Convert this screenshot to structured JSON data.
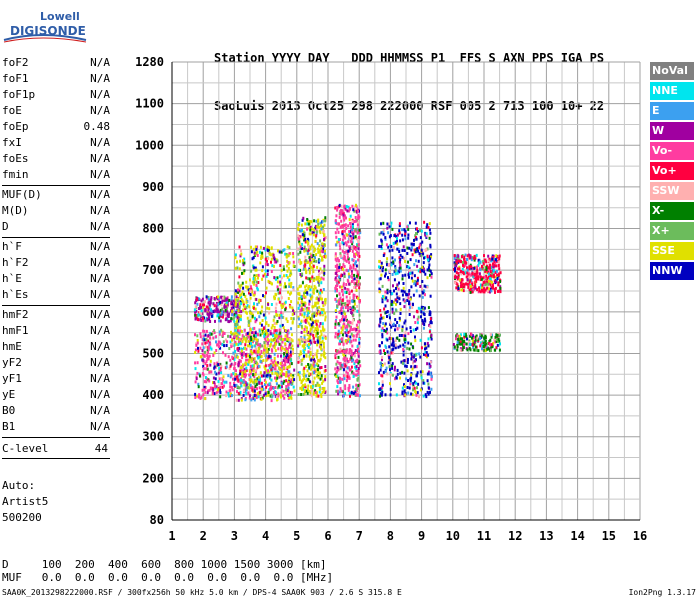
{
  "logo": {
    "line1": "Lowell",
    "line2": "DIGISONDE"
  },
  "header": {
    "line1": "Station YYYY DAY   DDD HHMMSS P1  FFS S AXN PPS IGA PS",
    "line2": "SaoLuis 2013 Oct25 298 222000 RSF 005 2 713 100 10+ 22"
  },
  "params": {
    "group1": [
      {
        "label": "foF2",
        "value": "N/A"
      },
      {
        "label": "foF1",
        "value": "N/A"
      },
      {
        "label": "foF1p",
        "value": "N/A"
      },
      {
        "label": "foE",
        "value": "N/A"
      },
      {
        "label": "foEp",
        "value": "0.48"
      },
      {
        "label": "fxI",
        "value": "N/A"
      },
      {
        "label": "foEs",
        "value": "N/A"
      },
      {
        "label": "fmin",
        "value": "N/A"
      }
    ],
    "group2": [
      {
        "label": "MUF(D)",
        "value": "N/A"
      },
      {
        "label": "M(D)",
        "value": "N/A"
      },
      {
        "label": "D",
        "value": "N/A"
      }
    ],
    "group3": [
      {
        "label": "h`F",
        "value": "N/A"
      },
      {
        "label": "h`F2",
        "value": "N/A"
      },
      {
        "label": "h`E",
        "value": "N/A"
      },
      {
        "label": "h`Es",
        "value": "N/A"
      }
    ],
    "group4": [
      {
        "label": "hmF2",
        "value": "N/A"
      },
      {
        "label": "hmF1",
        "value": "N/A"
      },
      {
        "label": "hmE",
        "value": "N/A"
      },
      {
        "label": "yF2",
        "value": "N/A"
      },
      {
        "label": "yF1",
        "value": "N/A"
      },
      {
        "label": "yE",
        "value": "N/A"
      },
      {
        "label": "B0",
        "value": "N/A"
      },
      {
        "label": "B1",
        "value": "N/A"
      }
    ],
    "clevel": {
      "label": "C-level",
      "value": "44"
    }
  },
  "auto": {
    "line1": "Auto:",
    "line2": "Artist5",
    "line3": "500200"
  },
  "legend": [
    {
      "label": "NoVal",
      "color": "#808080"
    },
    {
      "label": "NNE",
      "color": "#00e5ee"
    },
    {
      "label": "E",
      "color": "#3ca0f0"
    },
    {
      "label": "W",
      "color": "#a000a0"
    },
    {
      "label": "Vo-",
      "color": "#ff3ca0"
    },
    {
      "label": "Vo+",
      "color": "#ff0040"
    },
    {
      "label": "SSW",
      "color": "#ffb0b0"
    },
    {
      "label": "X-",
      "color": "#008000"
    },
    {
      "label": "X+",
      "color": "#6cbc5c"
    },
    {
      "label": "SSE",
      "color": "#e0e000"
    },
    {
      "label": "NNW",
      "color": "#0000c0"
    }
  ],
  "bottom": {
    "line1": "D     100  200  400  600  800 1000 1500 3000 [km]",
    "line2": "MUF   0.0  0.0  0.0  0.0  0.0  0.0  0.0  0.0 [MHz]"
  },
  "footer": {
    "left": "SAA0K_2013298222000.RSF / 300fx256h 50 kHz 5.0 km / DPS-4 SAA0K 903 / 2.6 S 315.8 E",
    "right": "Ion2Png 1.3.17"
  },
  "chart_data": {
    "type": "scatter",
    "x_ticks": [
      1,
      2,
      3,
      4,
      5,
      6,
      7,
      8,
      9,
      10,
      11,
      12,
      13,
      14,
      15,
      16
    ],
    "y_ticks": [
      80,
      200,
      300,
      400,
      500,
      600,
      700,
      800,
      900,
      1000,
      1100,
      1280
    ],
    "xlim": [
      1,
      16
    ],
    "ylim": [
      80,
      1280
    ],
    "grid": true,
    "echo_regions": [
      {
        "x": [
          1.7,
          3.2
        ],
        "y": [
          580,
          640
        ],
        "dominant": "W"
      },
      {
        "x": [
          1.7,
          4.8
        ],
        "y": [
          395,
          560
        ],
        "dominant": "Vo-"
      },
      {
        "x": [
          3.0,
          4.9
        ],
        "y": [
          390,
          760
        ],
        "dominant": "SSE"
      },
      {
        "x": [
          5.0,
          5.9
        ],
        "y": [
          400,
          830
        ],
        "dominant": "SSE"
      },
      {
        "x": [
          6.2,
          7.0
        ],
        "y": [
          400,
          860
        ],
        "dominant": "Vo-"
      },
      {
        "x": [
          7.6,
          9.3
        ],
        "y": [
          400,
          820
        ],
        "dominant": "NNW"
      },
      {
        "x": [
          10.0,
          11.5
        ],
        "y": [
          650,
          740
        ],
        "dominant": "Vo+"
      },
      {
        "x": [
          10.0,
          11.5
        ],
        "y": [
          510,
          550
        ],
        "dominant": "X-"
      }
    ]
  }
}
